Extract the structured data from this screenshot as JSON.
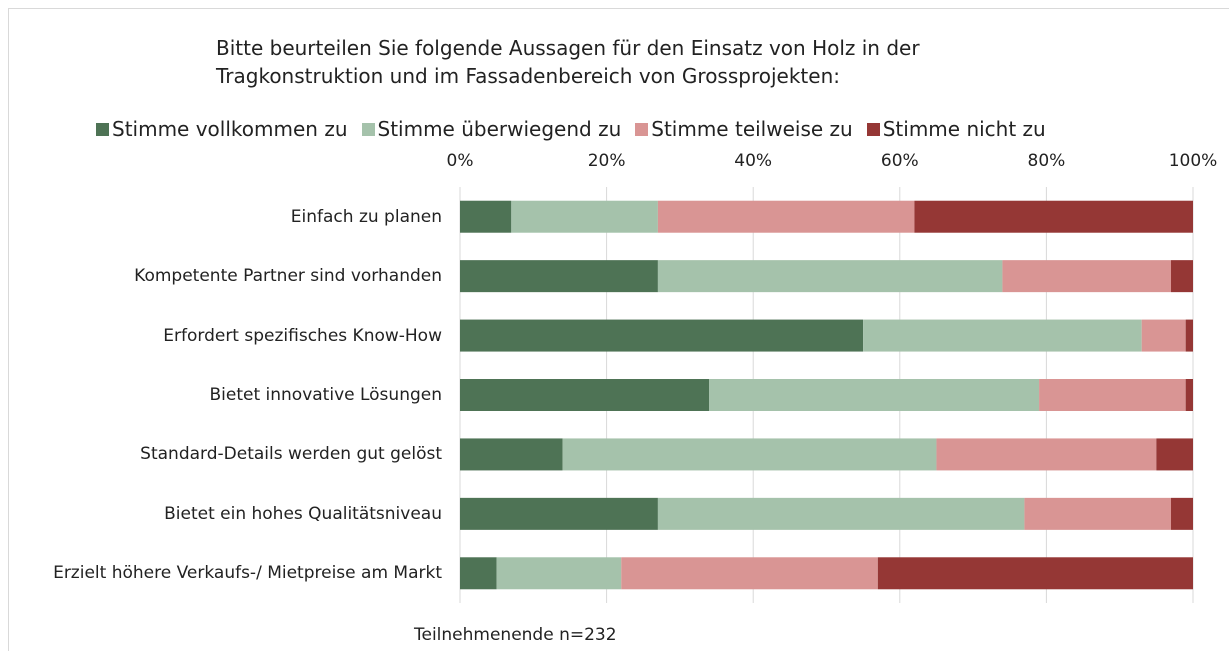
{
  "chart_data": {
    "type": "stacked_barh",
    "title": "Bitte beurteilen Sie folgende Aussagen für den Einsatz von Holz in der Tragkonstruktion und im Fassadenbereich von Grossprojekten:",
    "footnote": "Teilnehmenende n=232",
    "categories": [
      "Einfach zu planen",
      "Kompetente Partner sind vorhanden",
      "Erfordert spezifisches Know-How",
      "Bietet innovative Lösungen",
      "Standard-Details werden gut gelöst",
      "Bietet ein hohes Qualitätsniveau",
      "Erzielt höhere Verkaufs-/ Mietpreise am Markt"
    ],
    "series": [
      {
        "name": "Stimme vollkommen zu",
        "color": "#4e7355",
        "values": [
          7,
          27,
          55,
          34,
          14,
          27,
          5
        ]
      },
      {
        "name": "Stimme überwiegend zu",
        "color": "#a5c2ab",
        "values": [
          20,
          47,
          38,
          45,
          51,
          50,
          17
        ]
      },
      {
        "name": "Stimme teilweise zu",
        "color": "#d99594",
        "values": [
          35,
          23,
          6,
          20,
          30,
          20,
          35
        ]
      },
      {
        "name": "Stimme nicht zu",
        "color": "#953735",
        "values": [
          38,
          3,
          1,
          1,
          5,
          3,
          43
        ]
      }
    ],
    "xlim": [
      0,
      100
    ],
    "xticks": [
      {
        "value": 0,
        "label": "0%"
      },
      {
        "value": 20,
        "label": "20%"
      },
      {
        "value": 40,
        "label": "40%"
      },
      {
        "value": 60,
        "label": "60%"
      },
      {
        "value": 80,
        "label": "80%"
      },
      {
        "value": 100,
        "label": "100%"
      }
    ],
    "grid": true,
    "legend": "top"
  }
}
